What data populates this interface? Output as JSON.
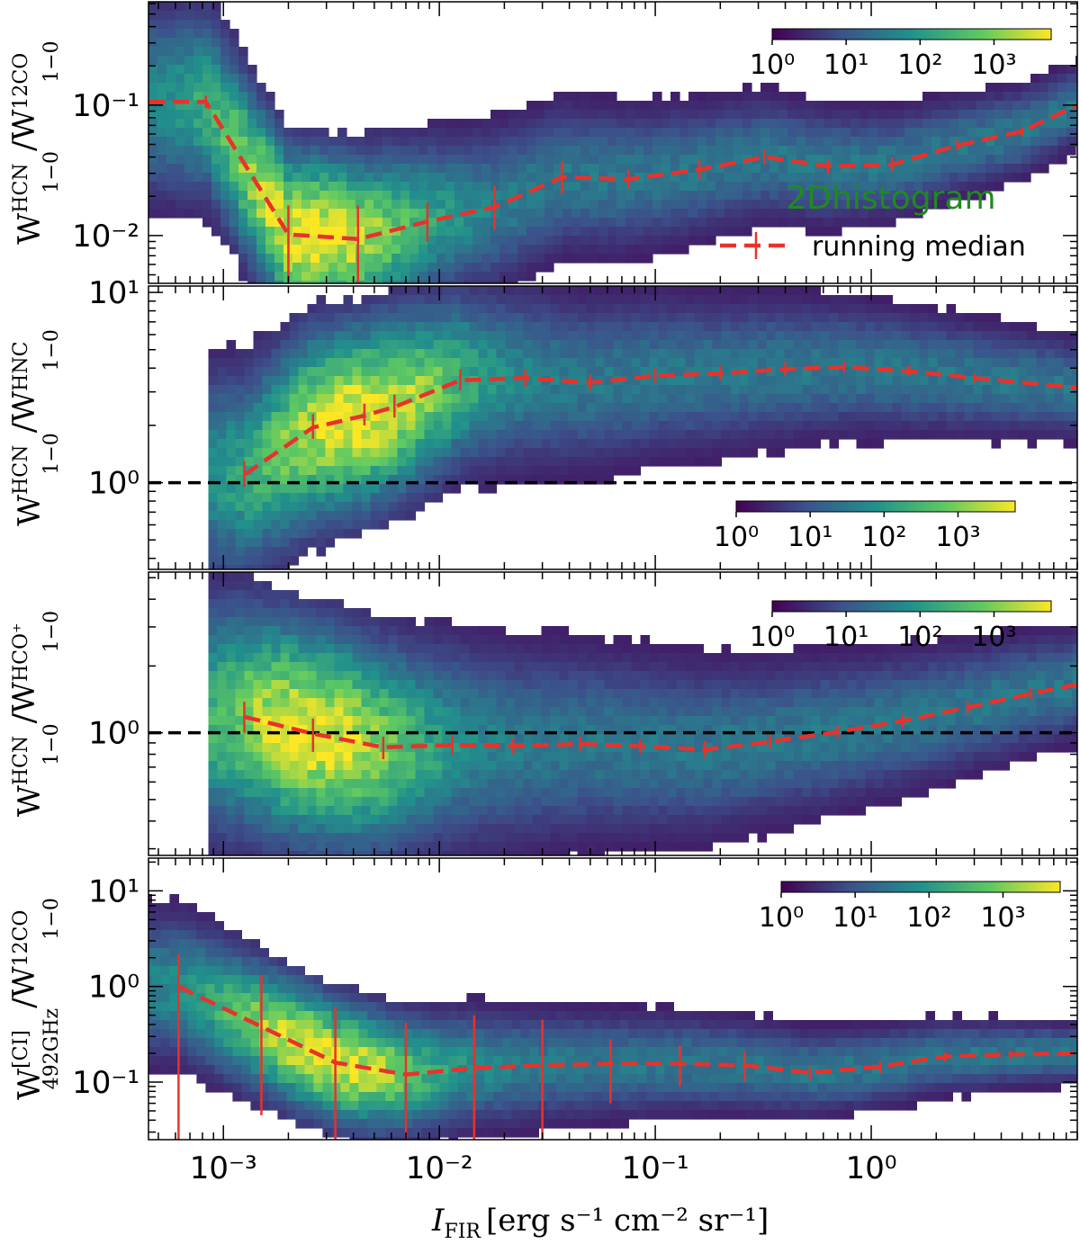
{
  "chart_data": {
    "type": "heatmap",
    "x_axis": {
      "label_main": "I",
      "label_sub": "FIR",
      "label_units": "[erg s⁻¹ cm⁻² sr⁻¹]",
      "scale": "log",
      "lim": [
        0.00045,
        9.0
      ],
      "tick_labels": [
        "10⁻³",
        "10⁻²",
        "10⁻¹",
        "10⁰"
      ],
      "tick_values": [
        0.001,
        0.01,
        0.1,
        1
      ]
    },
    "legend": {
      "heatmap_label": "2Dhistogram",
      "median_label": "running median",
      "placement": "panel-1 right"
    },
    "colormap": [
      "#440154",
      "#3b528b",
      "#21918c",
      "#5ec962",
      "#fde725"
    ],
    "median_color": "#e8322b",
    "panels": [
      {
        "ylabel": {
          "base": "W",
          "sup1": "HCN",
          "sub1": "1−0",
          "mid": "/W",
          "sup2": "12CO",
          "sub2": "1−0"
        },
        "ylim": [
          0.0043,
          0.62
        ],
        "yticks": [
          {
            "v": 0.01,
            "label": "10⁻²"
          },
          {
            "v": 0.1,
            "label": "10⁻¹"
          }
        ],
        "colorbar_ticks": [
          "10⁰",
          "10¹",
          "10²",
          "10³"
        ],
        "reference_line": null,
        "median": {
          "x": [
            0.00045,
            0.00083,
            0.002,
            0.0042,
            0.0088,
            0.018,
            0.037,
            0.075,
            0.16,
            0.32,
            0.63,
            1.25,
            2.5,
            5.0,
            9.0
          ],
          "y": [
            0.106,
            0.106,
            0.0102,
            0.0094,
            0.0128,
            0.0165,
            0.028,
            0.027,
            0.032,
            0.04,
            0.034,
            0.035,
            0.049,
            0.063,
            0.1
          ],
          "err_lo": [
            null,
            0.095,
            0.0043,
            0.0043,
            0.009,
            0.011,
            0.021,
            0.023,
            0.027,
            0.035,
            0.03,
            0.031,
            0.045,
            0.058,
            null
          ],
          "err_hi": [
            null,
            0.118,
            0.017,
            0.017,
            0.018,
            0.024,
            0.037,
            0.032,
            0.038,
            0.046,
            0.038,
            0.04,
            0.054,
            0.068,
            null
          ]
        }
      },
      {
        "ylabel": {
          "base": "W",
          "sup1": "HCN",
          "sub1": "1−0",
          "mid": "/W",
          "sup2": "HNC",
          "sub2": "1−0"
        },
        "ylim": [
          0.35,
          10.8
        ],
        "yticks": [
          {
            "v": 1,
            "label": "10⁰"
          },
          {
            "v": 10,
            "label": "10¹"
          }
        ],
        "colorbar_ticks": [
          "10⁰",
          "10¹",
          "10²",
          "10³"
        ],
        "reference_line": 1,
        "median": {
          "x": [
            0.00125,
            0.0026,
            0.0045,
            0.0062,
            0.0125,
            0.025,
            0.05,
            0.1,
            0.2,
            0.4,
            0.75,
            1.5,
            3.0,
            9.0
          ],
          "y": [
            1.1,
            1.95,
            2.25,
            2.5,
            3.45,
            3.55,
            3.35,
            3.65,
            3.75,
            3.95,
            4.05,
            3.85,
            3.55,
            3.15
          ],
          "err_lo": [
            0.95,
            1.7,
            2.0,
            2.2,
            3.05,
            3.2,
            3.05,
            3.35,
            3.45,
            3.65,
            3.8,
            3.65,
            3.35,
            null
          ],
          "err_hi": [
            1.3,
            2.3,
            2.6,
            2.9,
            3.95,
            3.95,
            3.7,
            4.0,
            4.1,
            4.3,
            4.35,
            4.1,
            3.75,
            null
          ]
        }
      },
      {
        "ylabel": {
          "base": "W",
          "sup1": "HCN",
          "sub1": "1−0",
          "mid": "/W",
          "sup2": "HCO⁺",
          "sub2": "1−0"
        },
        "ylim": [
          0.28,
          5.3
        ],
        "yticks": [
          {
            "v": 1,
            "label": "10⁰"
          }
        ],
        "colorbar_ticks": [
          "10⁰",
          "10¹",
          "10²",
          "10³"
        ],
        "reference_line": 1,
        "median": {
          "x": [
            0.00125,
            0.0026,
            0.0055,
            0.0115,
            0.022,
            0.045,
            0.085,
            0.17,
            0.34,
            0.7,
            1.4,
            2.8,
            5.5,
            9.0
          ],
          "y": [
            1.18,
            0.99,
            0.86,
            0.88,
            0.87,
            0.89,
            0.87,
            0.84,
            0.91,
            1.01,
            1.13,
            1.3,
            1.5,
            1.65
          ],
          "err_lo": [
            1.0,
            0.82,
            0.76,
            0.8,
            0.8,
            0.83,
            0.81,
            0.77,
            0.85,
            0.95,
            1.06,
            1.22,
            1.41,
            null
          ],
          "err_hi": [
            1.38,
            1.16,
            0.96,
            0.97,
            0.94,
            0.96,
            0.94,
            0.92,
            0.98,
            1.08,
            1.21,
            1.38,
            1.6,
            null
          ]
        }
      },
      {
        "ylabel": {
          "base": "W",
          "sup1": "[CI]",
          "sub1": "492GHz",
          "mid": "/W",
          "sup2": "12CO",
          "sub2": "1−0"
        },
        "ylim": [
          0.025,
          22
        ],
        "yticks": [
          {
            "v": 0.1,
            "label": "10⁻¹"
          },
          {
            "v": 1,
            "label": "10⁰"
          },
          {
            "v": 10,
            "label": "10¹"
          }
        ],
        "colorbar_ticks": [
          "10⁰",
          "10¹",
          "10²",
          "10³"
        ],
        "reference_line": null,
        "median": {
          "x": [
            0.00062,
            0.0015,
            0.0033,
            0.007,
            0.0145,
            0.03,
            0.062,
            0.13,
            0.26,
            0.52,
            1.1,
            2.2,
            4.4,
            9.0
          ],
          "y": [
            1.0,
            0.38,
            0.16,
            0.12,
            0.14,
            0.15,
            0.155,
            0.155,
            0.15,
            0.125,
            0.145,
            0.185,
            0.195,
            0.2
          ],
          "err_lo": [
            0.025,
            0.045,
            0.025,
            0.025,
            0.025,
            0.025,
            0.06,
            0.09,
            0.1,
            0.105,
            0.125,
            0.165,
            0.175,
            null
          ],
          "err_hi": [
            2.2,
            1.3,
            0.6,
            0.42,
            0.5,
            0.45,
            0.28,
            0.24,
            0.21,
            0.145,
            0.165,
            0.205,
            0.215,
            null
          ]
        }
      }
    ]
  }
}
